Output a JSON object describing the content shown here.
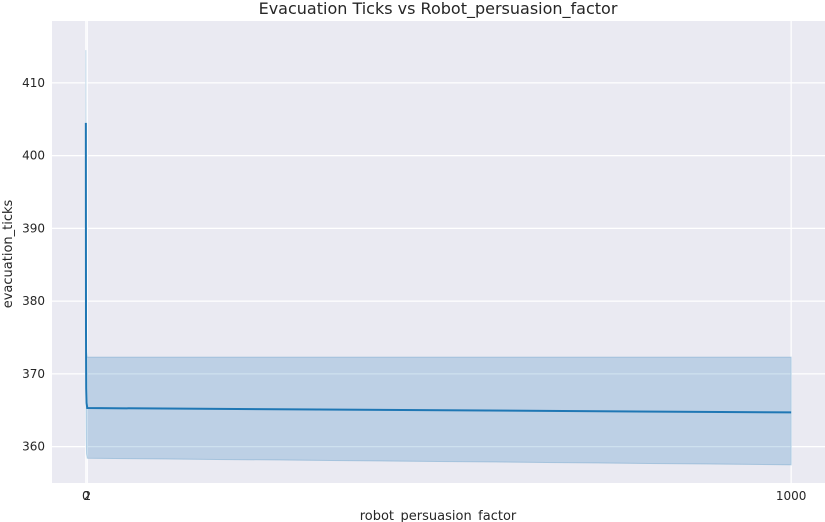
{
  "chart_data": {
    "type": "line",
    "title": "Evacuation Ticks vs Robot_persuasion_factor",
    "xlabel": "robot_persuasion_factor",
    "ylabel": "evacuation_ticks",
    "x_ticks": [
      "0",
      "2",
      "1000"
    ],
    "y_ticks": [
      "360",
      "370",
      "380",
      "390",
      "400",
      "410"
    ],
    "xlim": [
      -48,
      1048
    ],
    "ylim": [
      355.0,
      418.5
    ],
    "grid": true,
    "series": [
      {
        "color": "#1f77b4",
        "x": [
          0,
          0.1,
          0.2,
          0.5,
          1,
          2,
          1000
        ],
        "y": [
          404.5,
          390.0,
          376.0,
          368.0,
          366.0,
          365.3,
          364.7
        ],
        "ci_upper": [
          414.5,
          400.0,
          385.0,
          376.0,
          373.0,
          372.3,
          372.3
        ],
        "ci_lower": [
          394.5,
          380.0,
          367.0,
          361.0,
          359.0,
          358.4,
          357.5
        ]
      }
    ]
  }
}
